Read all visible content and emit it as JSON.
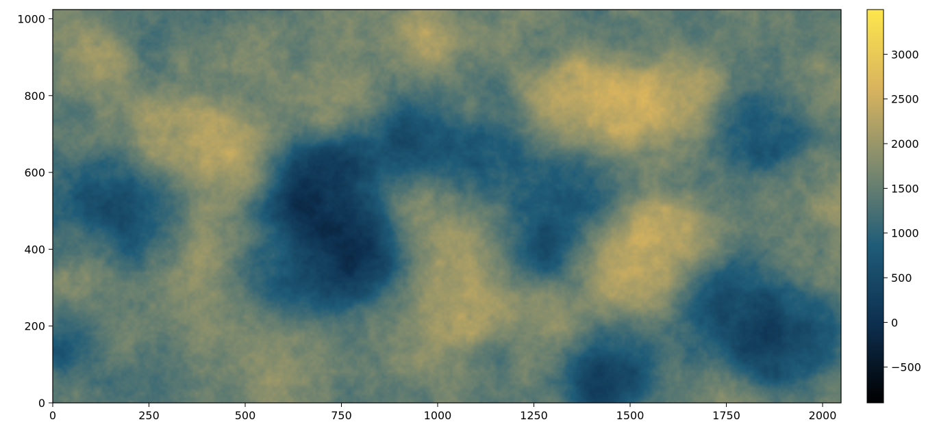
{
  "chart_data": {
    "type": "heatmap",
    "title": "",
    "xlabel": "",
    "ylabel": "",
    "xlim": [
      0,
      2048
    ],
    "ylim": [
      0,
      1024
    ],
    "origin": "lower",
    "x_ticks": [
      0,
      250,
      500,
      750,
      1000,
      1250,
      1500,
      1750,
      2000
    ],
    "y_ticks": [
      0,
      200,
      400,
      600,
      800,
      1000
    ],
    "grid": false,
    "colormap": "cividis-like (black → navy → teal → tan → yellow)",
    "colormap_stops": [
      "#000000",
      "#0d2f4f",
      "#1f5c78",
      "#7e8a6e",
      "#d9b45e",
      "#fde64d"
    ],
    "colorbar": {
      "vmin": -900,
      "vmax": 3500,
      "ticks": [
        -500,
        0,
        500,
        1000,
        1500,
        2000,
        2500,
        3000
      ],
      "tick_labels": [
        "−500",
        "0",
        "500",
        "1000",
        "1500",
        "2000",
        "2500",
        "3000"
      ],
      "position": "right"
    },
    "features": [
      {
        "kind": "low",
        "x": 700,
        "y": 580,
        "value": -400
      },
      {
        "kind": "low",
        "x": 770,
        "y": 430,
        "value": -600
      },
      {
        "kind": "low",
        "x": 760,
        "y": 350,
        "value": -300
      },
      {
        "kind": "low",
        "x": 640,
        "y": 500,
        "value": 100
      },
      {
        "kind": "low",
        "x": 900,
        "y": 680,
        "value": 200
      },
      {
        "kind": "low",
        "x": 570,
        "y": 290,
        "value": 100
      },
      {
        "kind": "low",
        "x": 1430,
        "y": 65,
        "value": -400
      },
      {
        "kind": "low",
        "x": 1940,
        "y": 200,
        "value": 0
      },
      {
        "kind": "low",
        "x": 1880,
        "y": 150,
        "value": 200
      },
      {
        "kind": "low",
        "x": 1250,
        "y": 420,
        "value": 300
      },
      {
        "kind": "low",
        "x": 1130,
        "y": 620,
        "value": 400
      },
      {
        "kind": "low",
        "x": 1400,
        "y": 580,
        "value": 500
      },
      {
        "kind": "low",
        "x": 1840,
        "y": 700,
        "value": 300
      },
      {
        "kind": "low",
        "x": 200,
        "y": 430,
        "value": 500
      },
      {
        "kind": "low",
        "x": 140,
        "y": 570,
        "value": 600
      },
      {
        "kind": "low",
        "x": 30,
        "y": 160,
        "value": 400
      },
      {
        "kind": "low",
        "x": 1720,
        "y": 280,
        "value": 400
      },
      {
        "kind": "high",
        "x": 1500,
        "y": 330,
        "value": 3000
      },
      {
        "kind": "high",
        "x": 1480,
        "y": 760,
        "value": 3000
      },
      {
        "kind": "high",
        "x": 1330,
        "y": 800,
        "value": 2800
      },
      {
        "kind": "high",
        "x": 1600,
        "y": 430,
        "value": 2700
      },
      {
        "kind": "high",
        "x": 470,
        "y": 650,
        "value": 2800
      },
      {
        "kind": "high",
        "x": 950,
        "y": 930,
        "value": 2600
      },
      {
        "kind": "high",
        "x": 380,
        "y": 400,
        "value": 2400
      },
      {
        "kind": "high",
        "x": 300,
        "y": 700,
        "value": 2400
      },
      {
        "kind": "high",
        "x": 1100,
        "y": 400,
        "value": 2200
      },
      {
        "kind": "high",
        "x": 1650,
        "y": 820,
        "value": 2300
      },
      {
        "kind": "high",
        "x": 1050,
        "y": 230,
        "value": 2100
      },
      {
        "kind": "high",
        "x": 100,
        "y": 880,
        "value": 2100
      },
      {
        "kind": "high",
        "x": 2000,
        "y": 800,
        "value": 2200
      },
      {
        "kind": "high",
        "x": 600,
        "y": 150,
        "value": 2000
      }
    ],
    "background_value": 1500
  }
}
